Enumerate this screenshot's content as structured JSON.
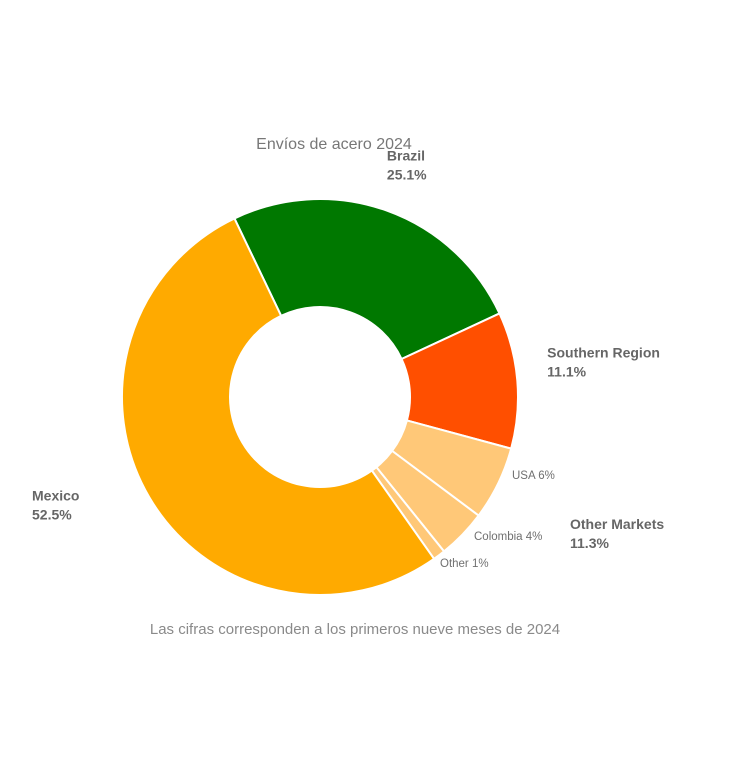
{
  "chart_data": {
    "type": "pie",
    "variant": "donut",
    "title": "Envíos de acero 2024",
    "footnote": "Las cifras corresponden a los primeros nueve meses de 2024",
    "slices": [
      {
        "label": "Brazil",
        "value": 25.1,
        "value_label": "25.1%",
        "color": "#007800"
      },
      {
        "label": "Southern Region",
        "value": 11.1,
        "value_label": "11.1%",
        "color": "#FF4F00"
      },
      {
        "label": "USA",
        "value": 6,
        "value_label": "6%",
        "display": "USA 6%",
        "color": "#FFC878",
        "group": "Other Markets"
      },
      {
        "label": "Colombia",
        "value": 4,
        "value_label": "4%",
        "display": "Colombia 4%",
        "color": "#FFC878",
        "group": "Other Markets"
      },
      {
        "label": "Other",
        "value": 1,
        "value_label": "1%",
        "display": "Other 1%",
        "color": "#FFC878",
        "group": "Other Markets"
      },
      {
        "label": "Mexico",
        "value": 52.5,
        "value_label": "52.5%",
        "color": "#FFAA00"
      }
    ],
    "group_labels": [
      {
        "label": "Other Markets",
        "value": 11.3,
        "value_label": "11.3%"
      }
    ]
  }
}
